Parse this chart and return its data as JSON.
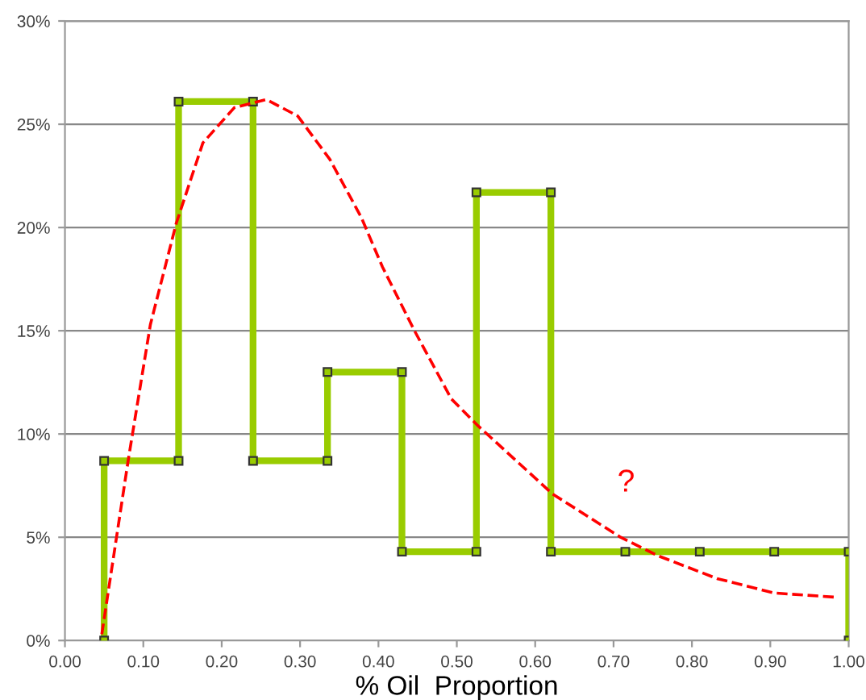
{
  "chart_data": {
    "type": "line",
    "xlabel": "% Oil  Proportion",
    "xlim": [
      0,
      1
    ],
    "xticks": [
      {
        "value": 0,
        "label": "0.00"
      },
      {
        "value": 0.1,
        "label": "0.10"
      },
      {
        "value": 0.2,
        "label": "0.20"
      },
      {
        "value": 0.3,
        "label": "0.30"
      },
      {
        "value": 0.4,
        "label": "0.40"
      },
      {
        "value": 0.5,
        "label": "0.50"
      },
      {
        "value": 0.6,
        "label": "0.60"
      },
      {
        "value": 0.7,
        "label": "0.70"
      },
      {
        "value": 0.8,
        "label": "0.80"
      },
      {
        "value": 0.9,
        "label": "0.90"
      },
      {
        "value": 1,
        "label": "1.00"
      }
    ],
    "ylim": [
      0,
      30
    ],
    "yticks": [
      {
        "value": 0,
        "label": "0%"
      },
      {
        "value": 5,
        "label": "5%"
      },
      {
        "value": 10,
        "label": "10%"
      },
      {
        "value": 15,
        "label": "15%"
      },
      {
        "value": 20,
        "label": "20%"
      },
      {
        "value": 25,
        "label": "25%"
      },
      {
        "value": 30,
        "label": "30%"
      }
    ],
    "grid": "y",
    "legend": false,
    "series": [
      {
        "color": "#99cc00",
        "marker": "square",
        "line_style": "solid",
        "x": [
          0.05,
          0.05,
          0.145,
          0.145,
          0.24,
          0.24,
          0.335,
          0.335,
          0.43,
          0.43,
          0.525,
          0.525,
          0.62,
          0.62,
          0.715,
          0.81,
          0.905,
          1.0,
          1.0
        ],
        "values": [
          0,
          8.7,
          8.7,
          26.1,
          26.1,
          8.7,
          8.7,
          13.0,
          13.0,
          4.3,
          4.3,
          21.7,
          21.7,
          4.3,
          4.3,
          4.3,
          4.3,
          4.3,
          0
        ]
      },
      {
        "color": "#ff0000",
        "marker": "none",
        "line_style": "dashed",
        "x": [
          0.047,
          0.081,
          0.109,
          0.142,
          0.176,
          0.216,
          0.257,
          0.297,
          0.338,
          0.378,
          0.405,
          0.446,
          0.493,
          0.527,
          0.622,
          0.709,
          0.757,
          0.832,
          0.905,
          0.982
        ],
        "values": [
          0.3,
          8.8,
          15.3,
          20.2,
          24.1,
          25.8,
          26.2,
          25.4,
          23.3,
          20.5,
          18.1,
          15.0,
          11.7,
          10.4,
          7.1,
          5.0,
          4.1,
          3.0,
          2.3,
          2.1
        ]
      }
    ],
    "annotations": [
      "?"
    ]
  }
}
